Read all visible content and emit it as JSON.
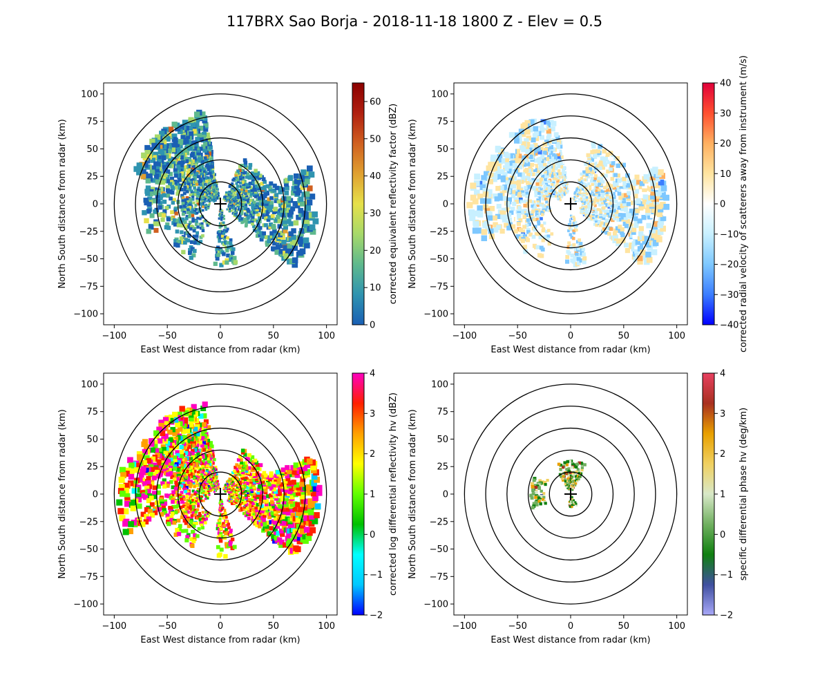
{
  "figure": {
    "title": "117BRX Sao Borja - 2018-11-18 1800 Z -  Elev = 0.5"
  },
  "chart_data": [
    {
      "type": "heatmap",
      "field": "reflectivity",
      "xlabel": "East West distance from radar (km)",
      "ylabel": "North South distance from radar (km)",
      "xlim": [
        -110,
        110
      ],
      "ylim": [
        -110,
        110
      ],
      "xticks": [
        "−100",
        "−50",
        "0",
        "50",
        "100"
      ],
      "yticks": [
        "100",
        "75",
        "50",
        "25",
        "0",
        "−25",
        "−50",
        "−75",
        "−100"
      ],
      "range_rings_km": [
        20,
        40,
        60,
        80,
        100
      ],
      "colorbar": {
        "label": "corrected equivalent reflectivity factor (dBZ)",
        "vmin": 0,
        "vmax": 65,
        "ticks": [
          "0",
          "10",
          "20",
          "30",
          "40",
          "50",
          "60"
        ],
        "colors": [
          "#1a5fb4",
          "#2f94b0",
          "#5fb98d",
          "#a7d96a",
          "#e6e04a",
          "#e0a030",
          "#d06020",
          "#b02010",
          "#8b0000"
        ]
      }
    },
    {
      "type": "heatmap",
      "field": "velocity",
      "xlabel": "East West distance from radar (km)",
      "ylabel": "North South distance from radar (km)",
      "xlim": [
        -110,
        110
      ],
      "ylim": [
        -110,
        110
      ],
      "xticks": [
        "−100",
        "−50",
        "0",
        "50",
        "100"
      ],
      "yticks": [
        "100",
        "75",
        "50",
        "25",
        "0",
        "−25",
        "−50",
        "−75",
        "−100"
      ],
      "range_rings_km": [
        20,
        40,
        60,
        80,
        100
      ],
      "colorbar": {
        "label": "corrected radial velocity of scatterers away from instrument (m/s)",
        "vmin": -40,
        "vmax": 40,
        "ticks": [
          "40",
          "30",
          "20",
          "10",
          "0",
          "−10",
          "−20",
          "−30",
          "−40"
        ],
        "colors": [
          "#0000ff",
          "#3b7dff",
          "#7ec8ff",
          "#c8f0ff",
          "#ffffff",
          "#ffe4a0",
          "#ffb060",
          "#ff5030",
          "#e0003a"
        ]
      }
    },
    {
      "type": "heatmap",
      "field": "differential_reflectivity",
      "xlabel": "East West distance from radar (km)",
      "ylabel": "North South distance from radar (km)",
      "xlim": [
        -110,
        110
      ],
      "ylim": [
        -110,
        110
      ],
      "xticks": [
        "−100",
        "−50",
        "0",
        "50",
        "100"
      ],
      "yticks": [
        "100",
        "75",
        "50",
        "25",
        "0",
        "−25",
        "−50",
        "−75",
        "−100"
      ],
      "range_rings_km": [
        20,
        40,
        60,
        80,
        100
      ],
      "colorbar": {
        "label": "corrected log differential reflectivity hv (dBZ)",
        "vmin": -2,
        "vmax": 4,
        "ticks": [
          "4",
          "3",
          "2",
          "1",
          "0",
          "−1",
          "−2"
        ],
        "colors": [
          "#0000ff",
          "#00c8ff",
          "#00ffff",
          "#00c000",
          "#60ff00",
          "#ffff00",
          "#ffa000",
          "#ff2000",
          "#ff00c0"
        ]
      }
    },
    {
      "type": "heatmap",
      "field": "specific_differential_phase",
      "xlabel": "East West distance from radar (km)",
      "ylabel": "North South distance from radar (km)",
      "xlim": [
        -110,
        110
      ],
      "ylim": [
        -110,
        110
      ],
      "xticks": [
        "−100",
        "−50",
        "0",
        "50",
        "100"
      ],
      "yticks": [
        "100",
        "75",
        "50",
        "25",
        "0",
        "−25",
        "−50",
        "−75",
        "−100"
      ],
      "range_rings_km": [
        20,
        40,
        60,
        80,
        100
      ],
      "colorbar": {
        "label": "specific differential phase hv (deg/km)",
        "vmin": -2,
        "vmax": 4,
        "ticks": [
          "4",
          "3",
          "2",
          "1",
          "0",
          "−1",
          "−2"
        ],
        "colors": [
          "#a8a8f8",
          "#4050a0",
          "#108010",
          "#70b060",
          "#d8e8c8",
          "#f0d060",
          "#e8a000",
          "#a83020",
          "#e84060"
        ]
      }
    }
  ]
}
